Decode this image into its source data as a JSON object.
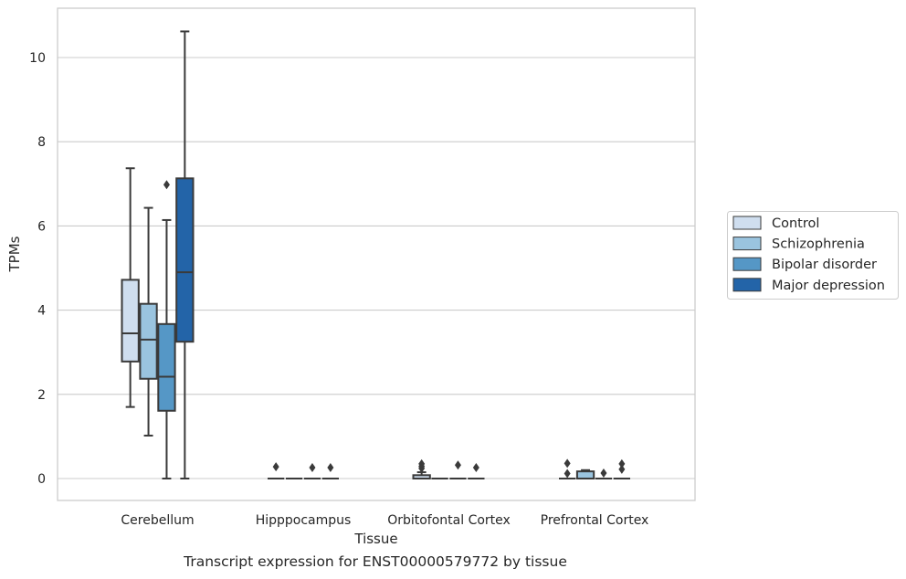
{
  "caption": "Transcript expression for ENST00000579772 by tissue",
  "colors": {
    "grid": "#cccccc",
    "frame": "#cccccc",
    "box_edge": "#3a3a3a"
  },
  "chart_data": {
    "type": "box",
    "xlabel": "Tissue",
    "ylabel": "TPMs",
    "ylim": [
      -0.5,
      11.15
    ],
    "yticks": [
      0,
      2,
      4,
      6,
      8,
      10
    ],
    "grid": "horizontal",
    "legend_position": "right",
    "categories": [
      "Cerebellum",
      "Hipppocampus",
      "Orbitofontal Cortex",
      "Prefrontal Cortex"
    ],
    "series": [
      {
        "name": "Control",
        "color": "#cfdeef",
        "boxes": [
          {
            "whislo": 1.7,
            "q1": 2.78,
            "med": 3.45,
            "q3": 4.72,
            "whishi": 7.37,
            "fliers": []
          },
          {
            "whislo": 0,
            "q1": 0,
            "med": 0,
            "q3": 0,
            "whishi": 0,
            "fliers": [
              0.28
            ]
          },
          {
            "whislo": 0,
            "q1": 0,
            "med": 0,
            "q3": 0.08,
            "whishi": 0.15,
            "fliers": [
              0.24,
              0.29,
              0.35
            ]
          },
          {
            "whislo": 0,
            "q1": 0,
            "med": 0,
            "q3": 0,
            "whishi": 0,
            "fliers": [
              0.12,
              0.36
            ]
          }
        ]
      },
      {
        "name": "Schizophrenia",
        "color": "#9ac4df",
        "boxes": [
          {
            "whislo": 1.02,
            "q1": 2.37,
            "med": 3.3,
            "q3": 4.15,
            "whishi": 6.43,
            "fliers": []
          },
          {
            "whislo": 0,
            "q1": 0,
            "med": 0,
            "q3": 0,
            "whishi": 0,
            "fliers": []
          },
          {
            "whislo": 0,
            "q1": 0,
            "med": 0,
            "q3": 0,
            "whishi": 0,
            "fliers": []
          },
          {
            "whislo": 0,
            "q1": 0,
            "med": 0,
            "q3": 0.17,
            "whishi": 0.2,
            "fliers": []
          }
        ]
      },
      {
        "name": "Bipolar disorder",
        "color": "#5597c6",
        "boxes": [
          {
            "whislo": 0,
            "q1": 1.61,
            "med": 2.42,
            "q3": 3.67,
            "whishi": 6.14,
            "fliers": [
              6.98
            ]
          },
          {
            "whislo": 0,
            "q1": 0,
            "med": 0,
            "q3": 0,
            "whishi": 0,
            "fliers": [
              0.26
            ]
          },
          {
            "whislo": 0,
            "q1": 0,
            "med": 0,
            "q3": 0,
            "whishi": 0,
            "fliers": [
              0.32
            ]
          },
          {
            "whislo": 0,
            "q1": 0,
            "med": 0,
            "q3": 0,
            "whishi": 0,
            "fliers": [
              0.13
            ]
          }
        ]
      },
      {
        "name": "Major depression",
        "color": "#2364a8",
        "boxes": [
          {
            "whislo": 0,
            "q1": 3.25,
            "med": 4.9,
            "q3": 7.13,
            "whishi": 10.62,
            "fliers": []
          },
          {
            "whislo": 0,
            "q1": 0,
            "med": 0,
            "q3": 0,
            "whishi": 0,
            "fliers": [
              0.26
            ]
          },
          {
            "whislo": 0,
            "q1": 0,
            "med": 0,
            "q3": 0,
            "whishi": 0,
            "fliers": [
              0.26
            ]
          },
          {
            "whislo": 0,
            "q1": 0,
            "med": 0,
            "q3": 0,
            "whishi": 0,
            "fliers": [
              0.22,
              0.35
            ]
          }
        ]
      }
    ]
  }
}
